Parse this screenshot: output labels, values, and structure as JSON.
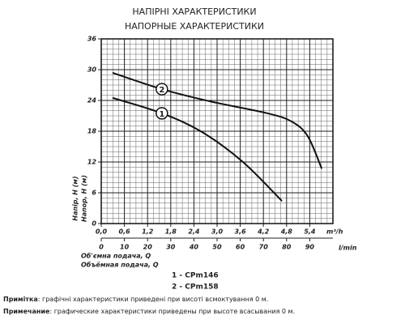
{
  "chart_data": {
    "type": "line",
    "title": "НАПІРНІ ХАРАКТЕРИСТИКИ",
    "subtitle": "НАПОРНЫЕ ХАРАКТЕРИСТИКИ",
    "y_label": [
      "Напір, H (м)",
      "Напор, H (м)"
    ],
    "x_label": [
      "Об'ємна подача, Q",
      "Объёмная подача, Q"
    ],
    "x_unit": "m³/h",
    "x2_unit": "l/min",
    "xlim": [
      0,
      6
    ],
    "xticks": [
      {
        "value": 0,
        "label": "0,0"
      },
      {
        "value": 0.6,
        "label": "0,6"
      },
      {
        "value": 1.2,
        "label": "1,2"
      },
      {
        "value": 1.8,
        "label": "1,8"
      },
      {
        "value": 2.4,
        "label": "2,4"
      },
      {
        "value": 3.0,
        "label": "3,0"
      },
      {
        "value": 3.6,
        "label": "3,6"
      },
      {
        "value": 4.2,
        "label": "4,2"
      },
      {
        "value": 4.8,
        "label": "4,8"
      },
      {
        "value": 5.4,
        "label": "5,4"
      }
    ],
    "x2lim": [
      0,
      100
    ],
    "x2ticks": [
      0,
      10,
      20,
      30,
      40,
      50,
      60,
      70,
      80,
      90
    ],
    "ylim": [
      0,
      36
    ],
    "yticks": [
      0,
      6,
      12,
      18,
      24,
      30,
      36
    ],
    "grid": true,
    "minor_grid_step": {
      "x": 0.15,
      "y": 1
    },
    "series": [
      {
        "name": "1 - CPm146",
        "marker_label": "1",
        "color": "#111111",
        "x": [
          0.29,
          1.57,
          2.62,
          3.67,
          4.68
        ],
        "values": [
          24.5,
          21.5,
          17.8,
          12,
          4.4
        ]
      },
      {
        "name": "2 - CPm158",
        "marker_label": "2",
        "color": "#111111",
        "x": [
          0.29,
          1.57,
          2.83,
          4.3,
          4.93,
          5.35,
          5.71
        ],
        "values": [
          29.4,
          26.2,
          23.8,
          21.5,
          19.9,
          17,
          10.7
        ]
      }
    ]
  },
  "notes": [
    {
      "label": "Примітка",
      "text": ": графічні характеристики приведені при висоті всмоктування 0 м."
    },
    {
      "label": "Примечание",
      "text": ": графические характеристики приведены при высоте всасывания 0 м."
    }
  ]
}
